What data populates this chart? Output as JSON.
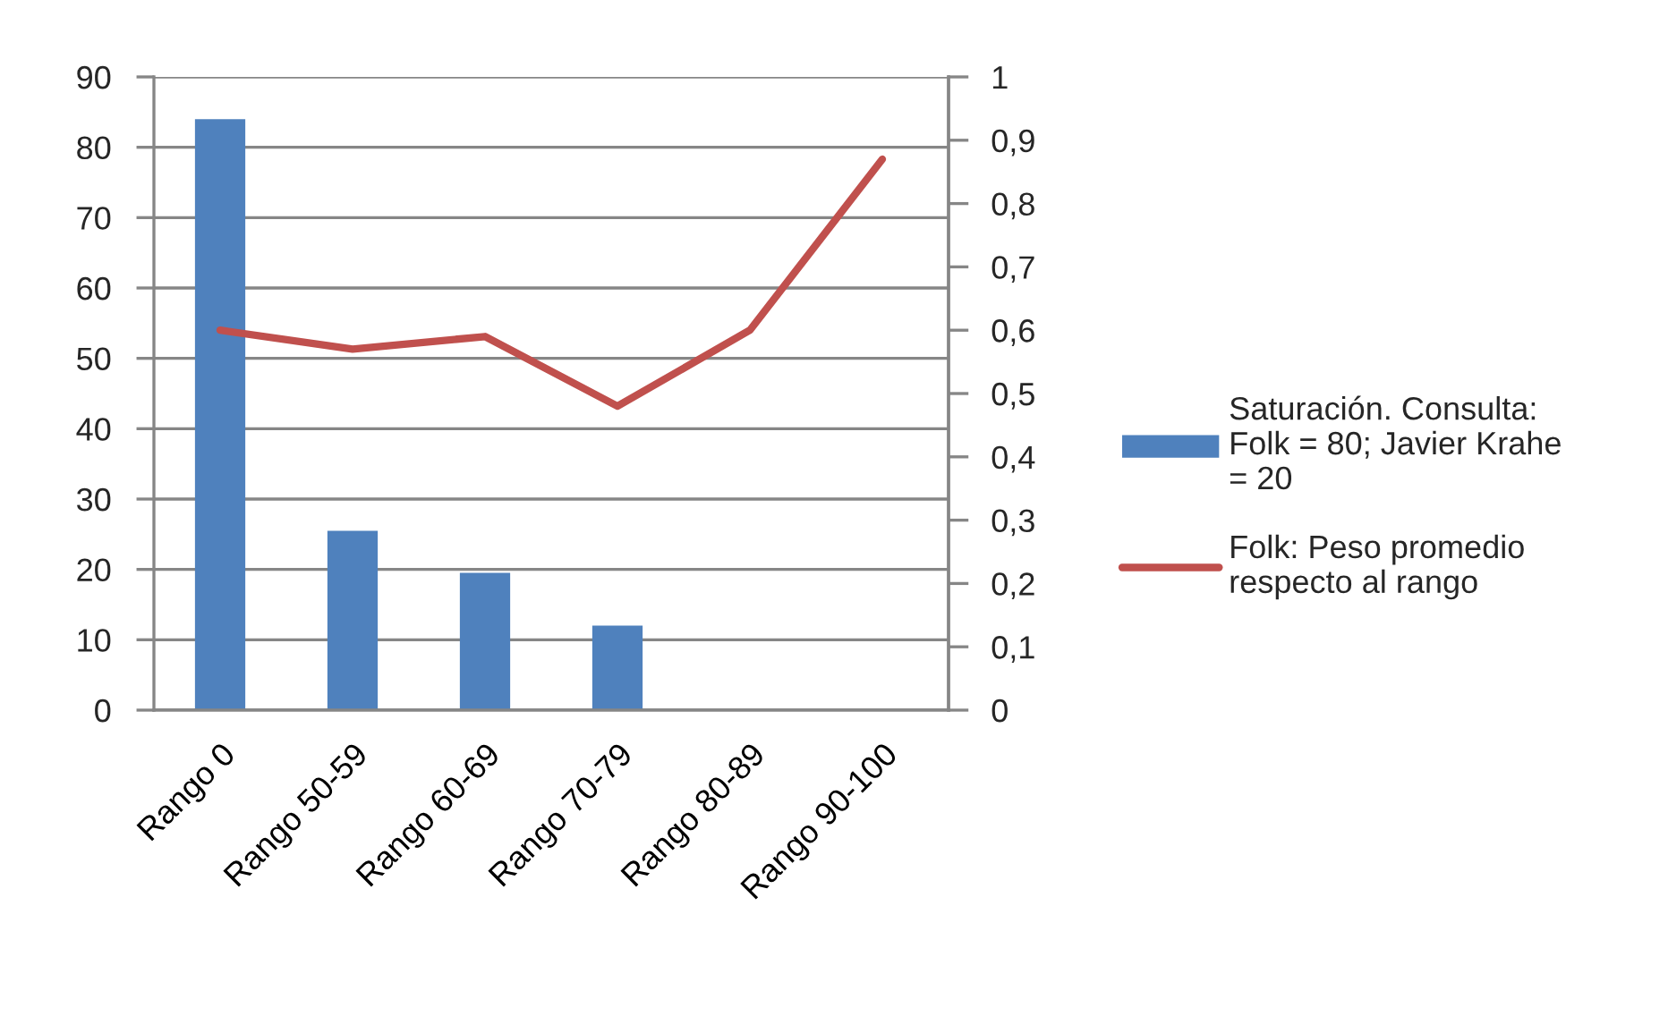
{
  "chart_data": {
    "type": "bar",
    "categories": [
      "Rango 0",
      "Rango 50-59",
      "Rango 60-69",
      "Rango 70-79",
      "Rango 80-89",
      "Rango 90-100"
    ],
    "series": [
      {
        "name": "Saturación. Consulta: Folk = 80; Javier Krahe = 20",
        "color": "#4f81bd",
        "values": [
          84,
          25.5,
          19.5,
          12,
          null,
          null
        ]
      },
      {
        "name": "Folk: Peso promedio respecto al rango",
        "type": "line",
        "axis": "y2",
        "color": "#c0504d",
        "values": [
          0.6,
          0.57,
          0.59,
          0.48,
          0.6,
          0.87
        ]
      }
    ],
    "ylim": [
      0,
      90
    ],
    "yticks": [
      0,
      10,
      20,
      30,
      40,
      50,
      60,
      70,
      80,
      90
    ],
    "y2lim": [
      0,
      1
    ],
    "y2ticks": [
      0,
      {
        "value": 0.1,
        "label": "0,1"
      },
      {
        "value": 0.2,
        "label": "0,2"
      },
      {
        "value": 0.3,
        "label": "0,3"
      },
      {
        "value": 0.4,
        "label": "0,4"
      },
      {
        "value": 0.5,
        "label": "0,5"
      },
      {
        "value": 0.6,
        "label": "0,6"
      },
      {
        "value": 0.7,
        "label": "0,7"
      },
      {
        "value": 0.8,
        "label": "0,8"
      },
      {
        "value": 0.9,
        "label": "0,9"
      },
      1
    ],
    "grid": "y",
    "legend": "right"
  }
}
